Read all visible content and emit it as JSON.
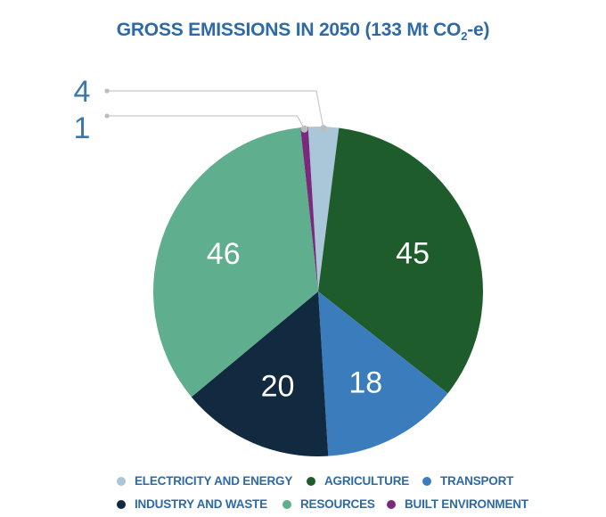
{
  "chart_data": {
    "type": "pie",
    "title_prefix": "GROSS EMISSIONS IN 2050 (133 Mt CO",
    "title_sub": "2",
    "title_suffix": "-e)",
    "slices": [
      {
        "name": "ELECTRICITY AND ENERGY",
        "value": 4,
        "color": "#a9c7d8"
      },
      {
        "name": "AGRICULTURE",
        "value": 45,
        "color": "#1f5c2b"
      },
      {
        "name": "TRANSPORT",
        "value": 18,
        "color": "#3b7cbd"
      },
      {
        "name": "INDUSTRY AND WASTE",
        "value": 20,
        "color": "#122a40"
      },
      {
        "name": "RESOURCES",
        "value": 46,
        "color": "#5fae8d"
      },
      {
        "name": "BUILT ENVIRONMENT",
        "value": 1,
        "color": "#7a2a7c"
      }
    ],
    "labels": {
      "ELECTRICITY AND ENERGY": "4",
      "AGRICULTURE": "45",
      "TRANSPORT": "18",
      "INDUSTRY AND WASTE": "20",
      "RESOURCES": "46",
      "BUILT ENVIRONMENT": "1"
    },
    "legend_placement": "bottom"
  }
}
